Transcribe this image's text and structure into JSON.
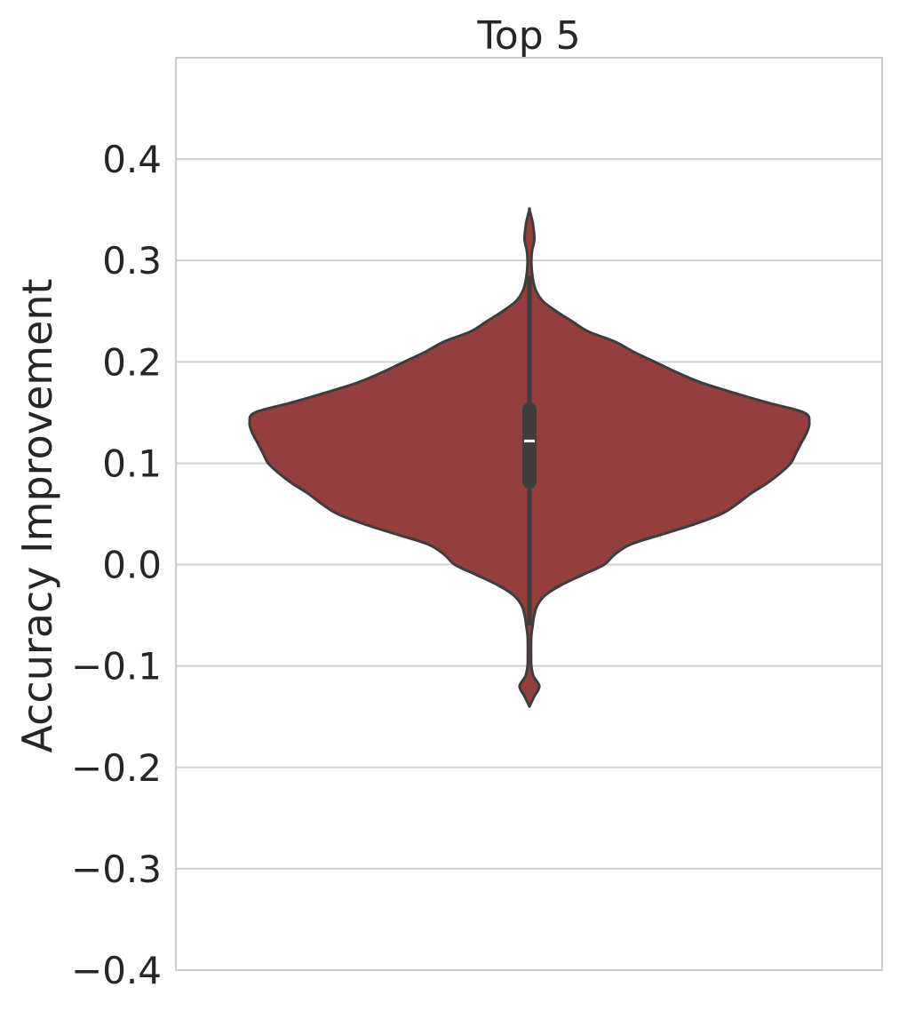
{
  "chart_data": {
    "type": "violin",
    "title": "Top 5",
    "xlabel": "",
    "ylabel": "Accuracy Improvement",
    "ylim": [
      -0.4,
      0.5
    ],
    "yticks": [
      -0.4,
      -0.3,
      -0.2,
      -0.1,
      0.0,
      0.1,
      0.2,
      0.3,
      0.4
    ],
    "ytick_labels": [
      "−0.4",
      "−0.3",
      "−0.2",
      "−0.1",
      "0.0",
      "0.1",
      "0.2",
      "0.3",
      "0.4"
    ],
    "grid": true,
    "colors": {
      "violin_fill": "#8e3433",
      "violin_edge": "#3d3d3d",
      "box": "#3d3d3d",
      "median": "#ffffff",
      "grid": "#d0d0d0"
    },
    "series": [
      {
        "data_min": -0.14,
        "data_max": 0.35,
        "whisker_low": -0.06,
        "whisker_high": 0.285,
        "q1": 0.075,
        "median": 0.122,
        "q3": 0.16,
        "density_profile": [
          [
            -0.14,
            0.0
          ],
          [
            -0.13,
            0.018
          ],
          [
            -0.12,
            0.037
          ],
          [
            -0.11,
            0.015
          ],
          [
            -0.1,
            0.007
          ],
          [
            -0.09,
            0.006
          ],
          [
            -0.08,
            0.006
          ],
          [
            -0.07,
            0.007
          ],
          [
            -0.06,
            0.012
          ],
          [
            -0.05,
            0.018
          ],
          [
            -0.04,
            0.03
          ],
          [
            -0.03,
            0.06
          ],
          [
            -0.02,
            0.12
          ],
          [
            -0.01,
            0.2
          ],
          [
            0.0,
            0.28
          ],
          [
            0.01,
            0.32
          ],
          [
            0.02,
            0.38
          ],
          [
            0.03,
            0.5
          ],
          [
            0.04,
            0.62
          ],
          [
            0.05,
            0.72
          ],
          [
            0.06,
            0.78
          ],
          [
            0.07,
            0.83
          ],
          [
            0.08,
            0.89
          ],
          [
            0.09,
            0.94
          ],
          [
            0.1,
            0.98
          ],
          [
            0.11,
            1.0
          ],
          [
            0.12,
            1.02
          ],
          [
            0.13,
            1.04
          ],
          [
            0.14,
            1.05
          ],
          [
            0.15,
            1.03
          ],
          [
            0.16,
            0.89
          ],
          [
            0.17,
            0.76
          ],
          [
            0.18,
            0.64
          ],
          [
            0.19,
            0.55
          ],
          [
            0.2,
            0.47
          ],
          [
            0.21,
            0.39
          ],
          [
            0.22,
            0.32
          ],
          [
            0.23,
            0.22
          ],
          [
            0.24,
            0.16
          ],
          [
            0.25,
            0.1
          ],
          [
            0.26,
            0.05
          ],
          [
            0.27,
            0.025
          ],
          [
            0.28,
            0.014
          ],
          [
            0.29,
            0.009
          ],
          [
            0.3,
            0.007
          ],
          [
            0.31,
            0.01
          ],
          [
            0.32,
            0.018
          ],
          [
            0.33,
            0.016
          ],
          [
            0.34,
            0.01
          ],
          [
            0.35,
            0.0
          ]
        ]
      }
    ]
  }
}
